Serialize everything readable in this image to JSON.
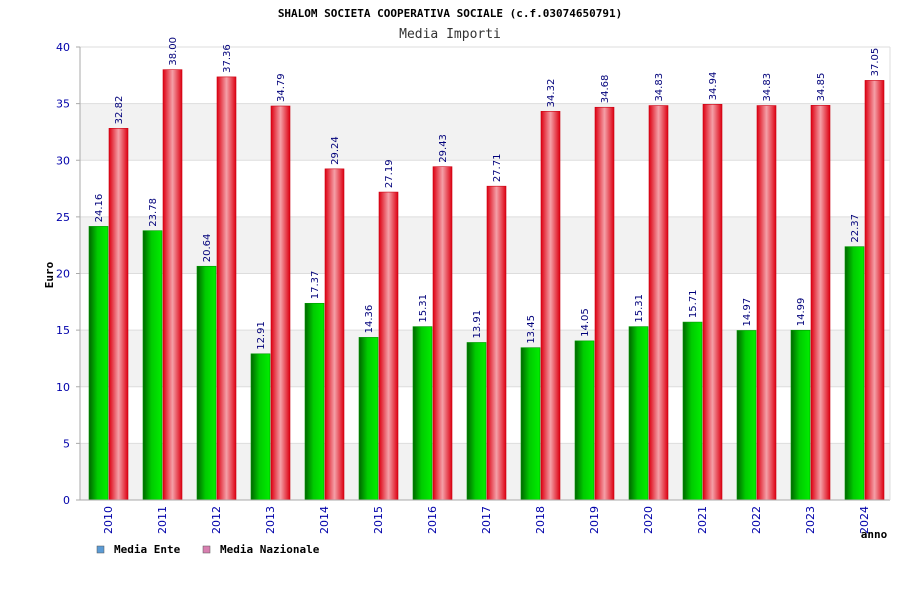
{
  "chart_data": {
    "type": "bar",
    "title": "SHALOM SOCIETA COOPERATIVA SOCIALE (c.f.03074650791)",
    "subtitle": "Media Importi",
    "xlabel": "anno",
    "ylabel": "Euro",
    "ylim": [
      0,
      40
    ],
    "yticks": [
      0,
      5,
      10,
      15,
      20,
      25,
      30,
      35,
      40
    ],
    "grid": true,
    "legend_position": "bottom-left",
    "categories": [
      "2010",
      "2011",
      "2012",
      "2013",
      "2014",
      "2015",
      "2016",
      "2017",
      "2018",
      "2019",
      "2020",
      "2021",
      "2022",
      "2023",
      "2024"
    ],
    "series": [
      {
        "name": "Media Ente",
        "color": "#00bb00",
        "legend_color": "#5b9bd5",
        "values": [
          24.16,
          23.78,
          20.64,
          12.91,
          17.37,
          14.36,
          15.31,
          13.91,
          13.45,
          14.05,
          15.31,
          15.71,
          14.97,
          14.99,
          22.37
        ],
        "labels": [
          "24.16",
          "23.78",
          "20.64",
          "12.91",
          "17.37",
          "14.36",
          "15.31",
          "13.91",
          "13.45",
          "14.05",
          "15.31",
          "15.71",
          "14.97",
          "14.99",
          "22.37"
        ]
      },
      {
        "name": "Media Nazionale",
        "color": "#ee1122",
        "legend_color": "#d87fb0",
        "values": [
          32.82,
          38.0,
          37.36,
          34.79,
          29.24,
          27.19,
          29.43,
          27.71,
          34.32,
          34.68,
          34.83,
          34.94,
          34.83,
          34.85,
          37.05
        ],
        "labels": [
          "32.82",
          "38.00",
          "37.36",
          "34.79",
          "29.24",
          "27.19",
          "29.43",
          "27.71",
          "34.32",
          "34.68",
          "34.83",
          "34.94",
          "34.83",
          "34.85",
          "37.05"
        ]
      }
    ]
  }
}
